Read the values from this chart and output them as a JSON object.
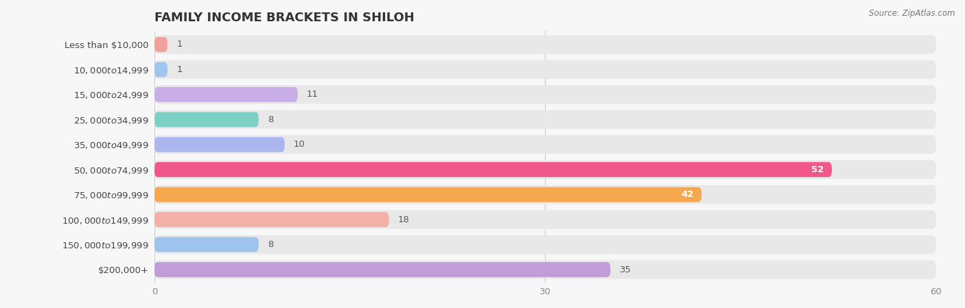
{
  "title": "FAMILY INCOME BRACKETS IN SHILOH",
  "source": "Source: ZipAtlas.com",
  "categories": [
    "Less than $10,000",
    "$10,000 to $14,999",
    "$15,000 to $24,999",
    "$25,000 to $34,999",
    "$35,000 to $49,999",
    "$50,000 to $74,999",
    "$75,000 to $99,999",
    "$100,000 to $149,999",
    "$150,000 to $199,999",
    "$200,000+"
  ],
  "values": [
    1,
    1,
    11,
    8,
    10,
    52,
    42,
    18,
    8,
    35
  ],
  "bar_colors": [
    "#f2a09a",
    "#9ec4ef",
    "#c9aee8",
    "#7dd0c5",
    "#abb5ee",
    "#f0588a",
    "#f5a84e",
    "#f2b0a8",
    "#9ec4ef",
    "#c09cd8"
  ],
  "xlim": [
    0,
    60
  ],
  "xticks": [
    0,
    30,
    60
  ],
  "background_color": "#f7f7f7",
  "bar_bg_color": "#e8e8e8",
  "title_fontsize": 13,
  "label_fontsize": 9.5,
  "value_fontsize": 9.5
}
